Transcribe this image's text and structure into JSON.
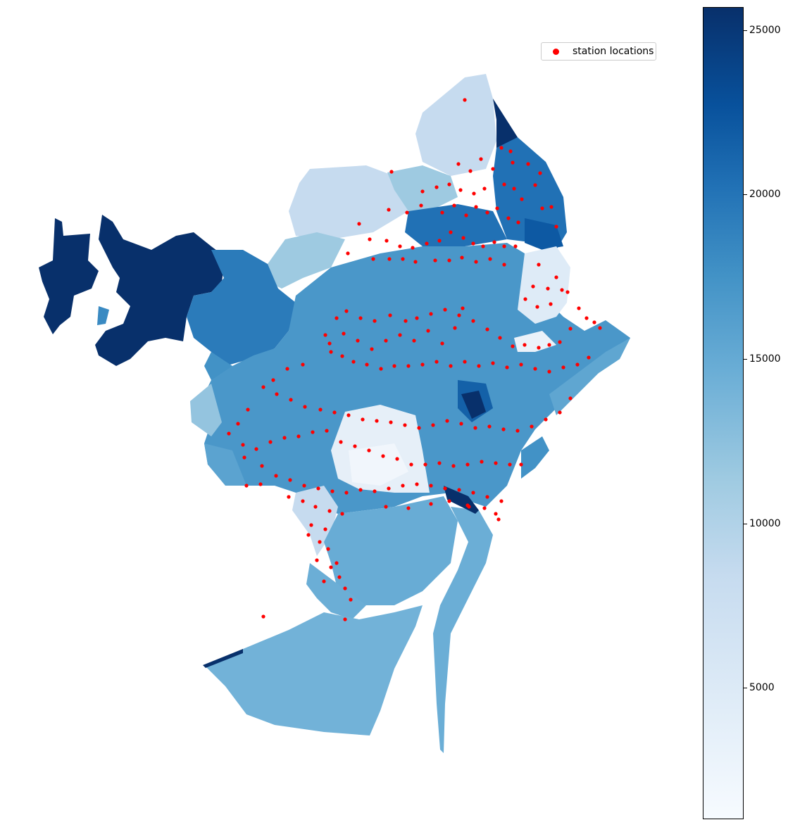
{
  "legend": {
    "label": "station locations",
    "marker_color": "#ff0000"
  },
  "colorbar": {
    "colormap": "Blues",
    "min": 1000,
    "max": 25700,
    "ticks": [
      {
        "value": 5000,
        "label": "5000"
      },
      {
        "value": 10000,
        "label": "10000"
      },
      {
        "value": 15000,
        "label": "15000"
      },
      {
        "value": 20000,
        "label": "20000"
      },
      {
        "value": 25000,
        "label": "25000"
      }
    ]
  },
  "colors": {
    "station": "#ff0000",
    "darkest": "#08306b",
    "lightest": "#f7fbff"
  }
}
